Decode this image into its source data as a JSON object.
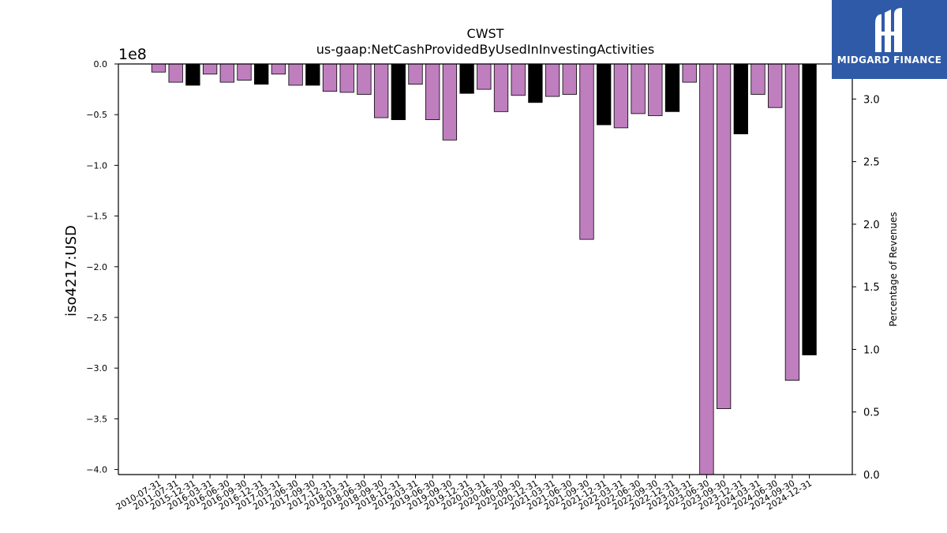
{
  "chart_data": {
    "type": "bar",
    "title": "CWST",
    "subtitle": "us-gaap:NetCashProvidedByUsedInInvestingActivities",
    "ylabel": "iso4217:USD",
    "y2label": "Percentage of Revenues",
    "yoffset_label": "1e8",
    "ylim": [
      -4.05,
      0.0
    ],
    "y2lim": [
      0.0,
      3.28
    ],
    "yticks": [
      "0.0",
      "−0.5",
      "−1.0",
      "−1.5",
      "−2.0",
      "−2.5",
      "−3.0",
      "−3.5",
      "−4.0"
    ],
    "yticks_values": [
      0.0,
      -0.5,
      -1.0,
      -1.5,
      -2.0,
      -2.5,
      -3.0,
      -3.5,
      -4.0
    ],
    "y2ticks": [
      "0.0",
      "0.5",
      "1.0",
      "1.5",
      "2.0",
      "2.5",
      "3.0"
    ],
    "y2ticks_values": [
      0.0,
      0.5,
      1.0,
      1.5,
      2.0,
      2.5,
      3.0
    ],
    "categories": [
      "2010-07-31",
      "2011-07-31",
      "2015-12-31",
      "2016-03-31",
      "2016-06-30",
      "2016-09-30",
      "2016-12-31",
      "2017-03-31",
      "2017-06-30",
      "2017-09-30",
      "2017-12-31",
      "2018-03-31",
      "2018-06-30",
      "2018-09-30",
      "2018-12-31",
      "2019-03-31",
      "2019-06-30",
      "2019-09-30",
      "2019-12-31",
      "2020-03-31",
      "2020-06-30",
      "2020-09-30",
      "2020-12-31",
      "2021-03-31",
      "2021-06-30",
      "2021-09-30",
      "2021-12-31",
      "2022-03-31",
      "2022-06-30",
      "2022-09-30",
      "2022-12-31",
      "2023-03-31",
      "2023-06-30",
      "2023-09-30",
      "2023-12-31",
      "2024-03-31",
      "2024-06-30",
      "2024-09-30",
      "2024-12-31"
    ],
    "values": [
      -0.08,
      -0.18,
      -0.21,
      -0.1,
      -0.18,
      -0.16,
      -0.2,
      -0.1,
      -0.21,
      -0.21,
      -0.27,
      -0.28,
      -0.3,
      -0.53,
      -0.55,
      -0.2,
      -0.55,
      -0.75,
      -0.29,
      -0.25,
      -0.47,
      -0.31,
      -0.38,
      -0.32,
      -0.3,
      -1.73,
      -0.6,
      -0.63,
      -0.49,
      -0.51,
      -0.47,
      -0.18,
      -4.05,
      -3.4,
      -0.69,
      -0.3,
      -0.43,
      -3.12,
      -2.87
    ],
    "annual": [
      false,
      false,
      true,
      false,
      false,
      false,
      true,
      false,
      false,
      true,
      false,
      false,
      false,
      false,
      true,
      false,
      false,
      false,
      true,
      false,
      false,
      false,
      true,
      false,
      false,
      false,
      true,
      false,
      false,
      false,
      true,
      false,
      false,
      false,
      true,
      false,
      false,
      false,
      true
    ],
    "colors": {
      "quarter": "#bf7fbf",
      "annual": "#000000",
      "edge": "#000000"
    },
    "grid": false
  },
  "logo": {
    "text": "MIDGARD FINANCE"
  }
}
